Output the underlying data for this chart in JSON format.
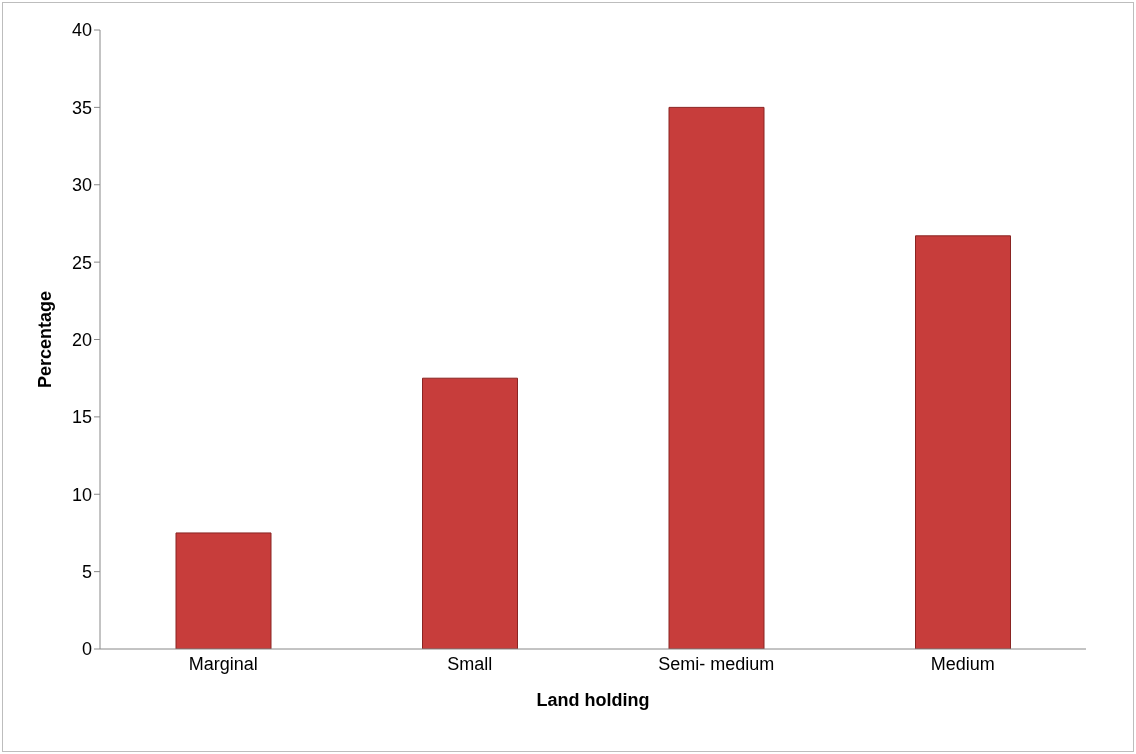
{
  "chart_data": {
    "type": "bar",
    "xlabel": "Land holding",
    "ylabel": "Percentage",
    "categories": [
      "Marginal",
      "Small",
      "Semi- medium",
      "Medium"
    ],
    "values": [
      7.5,
      17.5,
      35,
      26.7
    ],
    "color": "#c73d3b",
    "ylim": [
      0,
      40
    ],
    "yticks": [
      0,
      5,
      10,
      15,
      20,
      25,
      30,
      35,
      40
    ],
    "grid": false,
    "legend": false
  }
}
